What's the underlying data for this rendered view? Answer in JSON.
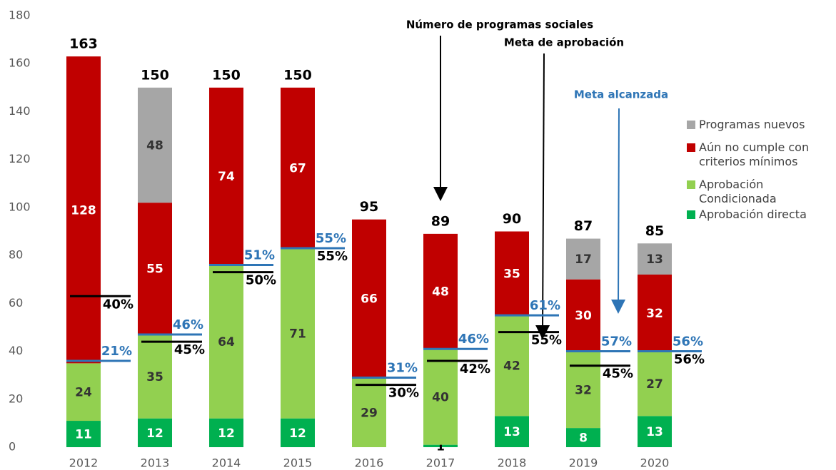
{
  "chart_data": {
    "type": "stacked_bar",
    "categories": [
      "2012",
      "2013",
      "2014",
      "2015",
      "2016",
      "2017",
      "2018",
      "2019",
      "2020"
    ],
    "series": [
      {
        "name": "Aprobación directa",
        "color": "#00b050",
        "label_color": "#ffffff",
        "values": [
          11,
          12,
          12,
          12,
          null,
          1,
          13,
          8,
          13
        ]
      },
      {
        "name": "Aprobación Condicionada",
        "color": "#92d050",
        "label_color": "#333333",
        "values": [
          24,
          35,
          64,
          71,
          29,
          40,
          42,
          32,
          27
        ]
      },
      {
        "name": "Aún no cumple con criterios mínimos",
        "color": "#c00000",
        "label_color": "#ffffff",
        "values": [
          128,
          55,
          74,
          67,
          66,
          48,
          35,
          30,
          32
        ]
      },
      {
        "name": "Programas nuevos",
        "color": "#a6a6a6",
        "label_color": "#333333",
        "values": [
          null,
          48,
          null,
          null,
          null,
          null,
          null,
          17,
          13
        ]
      }
    ],
    "totals": [
      163,
      150,
      150,
      150,
      95,
      89,
      90,
      87,
      85
    ],
    "goal": {
      "color": "#000000",
      "values": [
        40,
        45,
        50,
        55,
        30,
        42,
        55,
        45,
        56
      ],
      "value_labels": [
        "40%",
        "45%",
        "50%",
        "55%",
        "30%",
        "42%",
        "55%",
        "45%",
        "56%"
      ],
      "positions": [
        63,
        44,
        73,
        83,
        26,
        36,
        48,
        34,
        40
      ]
    },
    "reached": {
      "color": "#2e75b6",
      "values": [
        21,
        46,
        51,
        55,
        31,
        46,
        61,
        57,
        56
      ],
      "value_labels": [
        "21%",
        "46%",
        "51%",
        "55%",
        "31%",
        "46%",
        "61%",
        "57%",
        "56%"
      ],
      "positions": [
        36,
        47,
        76,
        83,
        29,
        41,
        55,
        40,
        40
      ]
    },
    "annotations": [
      "Número de programas sociales",
      "Meta de aprobación",
      "Meta alcanzada"
    ],
    "ylim": [
      0,
      180
    ],
    "yticks": [
      0,
      20,
      40,
      60,
      80,
      100,
      120,
      140,
      160,
      180
    ],
    "grid": false
  }
}
